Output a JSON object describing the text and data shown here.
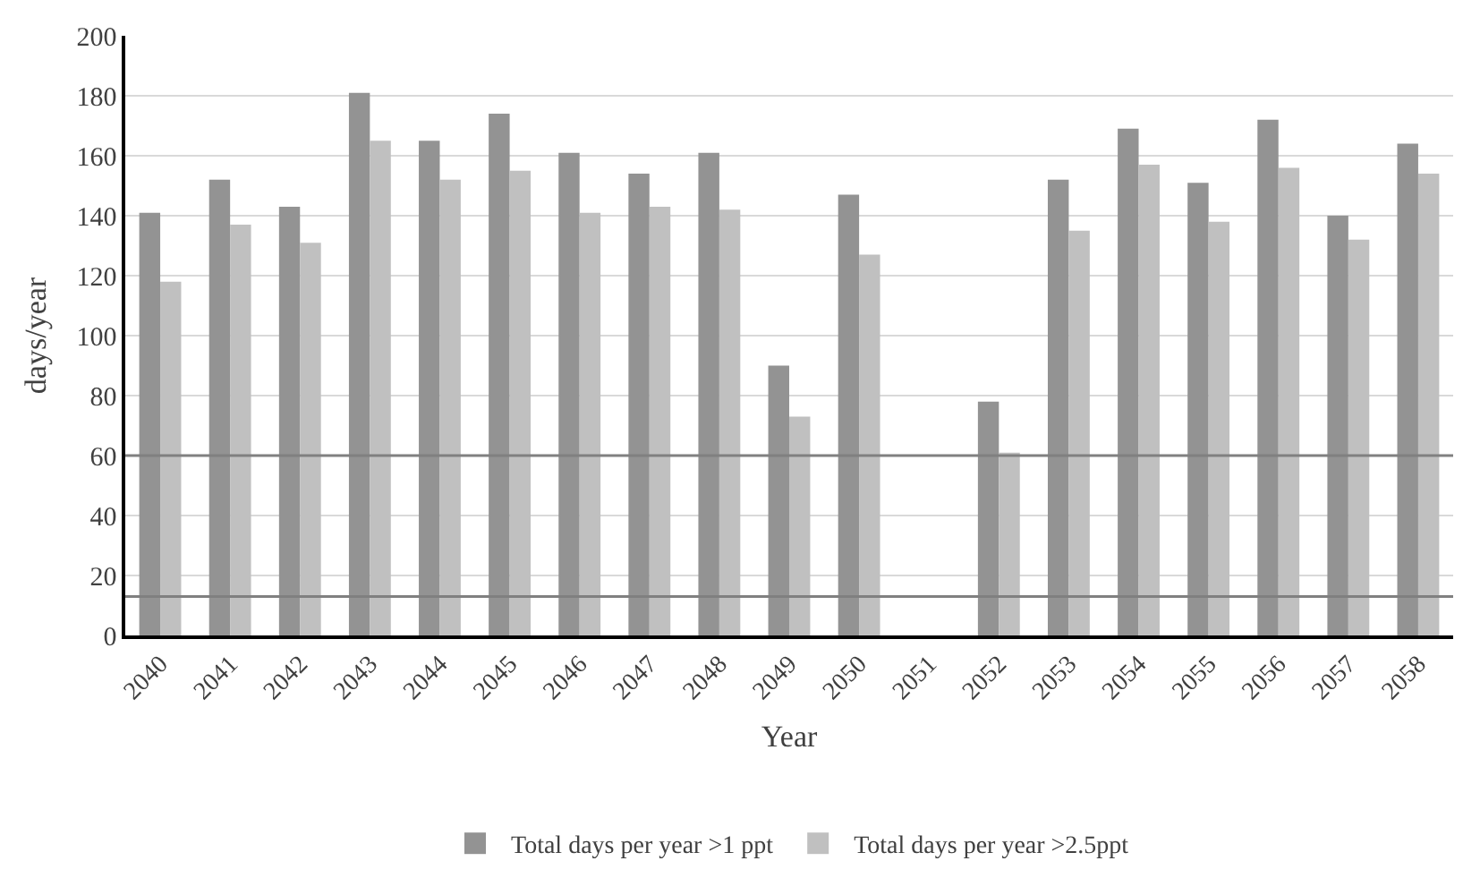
{
  "chart_data": {
    "type": "bar",
    "xlabel": "Year",
    "ylabel": "days/year",
    "categories": [
      "2040",
      "2041",
      "2042",
      "2043",
      "2044",
      "2045",
      "2046",
      "2047",
      "2048",
      "2049",
      "2050",
      "2051",
      "2052",
      "2053",
      "2054",
      "2055",
      "2056",
      "2057",
      "2058"
    ],
    "series": [
      {
        "name": "Total days per year >1 ppt",
        "color": "#939393",
        "values": [
          141,
          152,
          143,
          181,
          165,
          174,
          161,
          154,
          161,
          90,
          147,
          null,
          78,
          152,
          169,
          151,
          172,
          140,
          164
        ]
      },
      {
        "name": "Total days per year >2.5ppt",
        "color": "#c0c0c0",
        "values": [
          118,
          137,
          131,
          165,
          152,
          155,
          141,
          143,
          142,
          73,
          127,
          null,
          61,
          135,
          157,
          138,
          156,
          132,
          154
        ]
      }
    ],
    "ylim": [
      0,
      200
    ],
    "yticks": [
      0,
      20,
      40,
      60,
      80,
      100,
      120,
      140,
      160,
      180,
      200
    ],
    "grid": "y",
    "legend": "bottom",
    "ref_lines": [
      {
        "axis": "y",
        "value": 60,
        "color": "#808080"
      },
      {
        "axis": "y",
        "value": 13,
        "color": "#808080"
      }
    ]
  }
}
